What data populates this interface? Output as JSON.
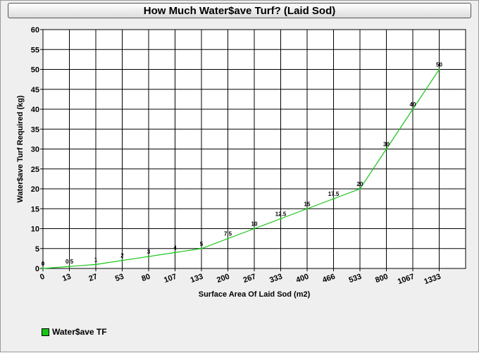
{
  "chart_data": {
    "type": "line",
    "title": "How Much Water$ave Turf? (Laid Sod)",
    "xlabel": "Surface Area Of Laid Sod (m2)",
    "ylabel": "Water$ave Turf Required (kg)",
    "categories": [
      "0",
      "13",
      "27",
      "53",
      "80",
      "107",
      "133",
      "200",
      "267",
      "333",
      "400",
      "466",
      "533",
      "800",
      "1067",
      "1333"
    ],
    "series": [
      {
        "name": "Water$ave TF",
        "color": "#16c416",
        "values": [
          0,
          0.5,
          1,
          2,
          3,
          4,
          5,
          7.5,
          10,
          12.5,
          15,
          17.5,
          20,
          30,
          40,
          50
        ],
        "labels": [
          "0",
          "0.5",
          "1",
          "2",
          "3",
          "4",
          "5",
          "7.5",
          "10",
          "12.5",
          "15",
          "17.5",
          "20",
          "30",
          "40",
          "50"
        ]
      }
    ],
    "ylim": [
      0,
      60
    ],
    "yticks": [
      "0",
      "5",
      "10",
      "15",
      "20",
      "25",
      "30",
      "35",
      "40",
      "45",
      "50",
      "55",
      "60"
    ],
    "grid": true,
    "legend_position": "bottom-left"
  }
}
